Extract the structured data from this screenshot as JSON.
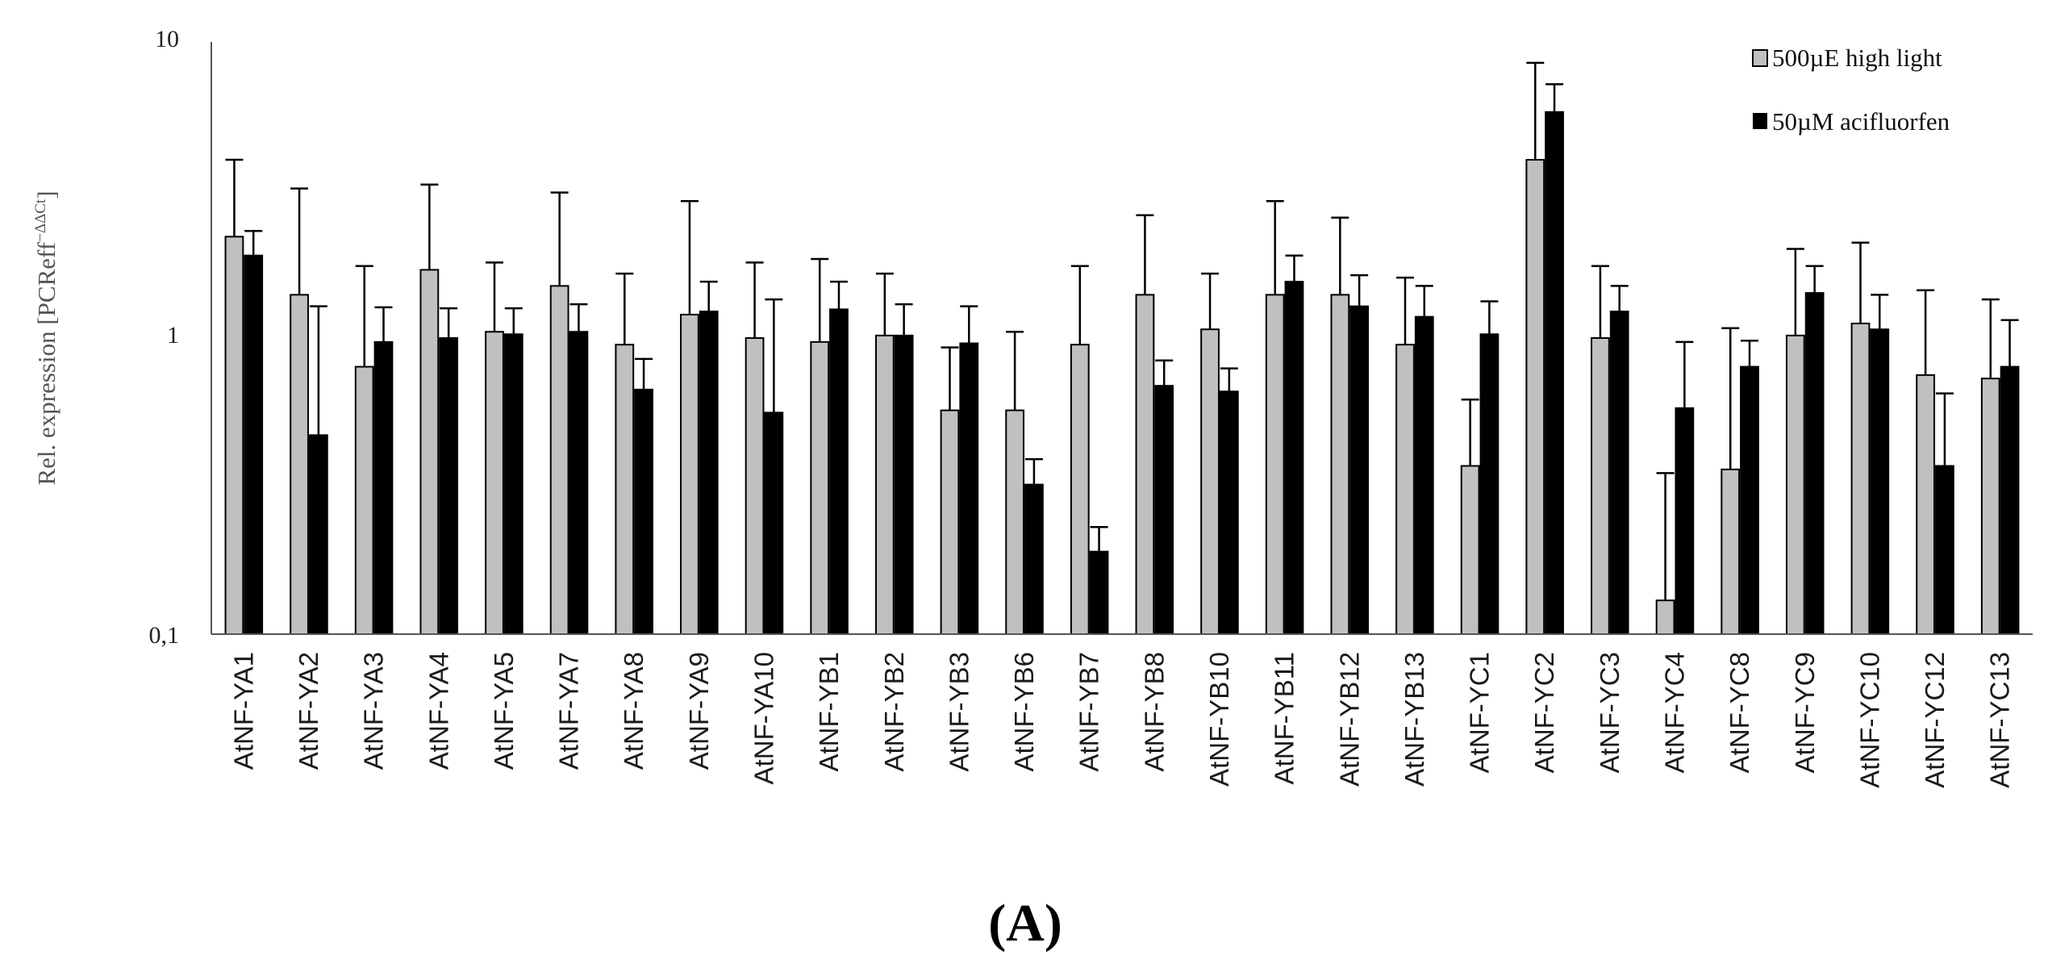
{
  "chart_data": {
    "type": "bar",
    "scale": "log",
    "ylim": [
      0.1,
      10
    ],
    "yticks": [
      "0,1",
      "1",
      "10"
    ],
    "ylabel": "Rel. expression [PCReff",
    "ylabel_sup": "−ΔΔCt",
    "ylabel_close": "]",
    "panel_label": "(A)",
    "legend_position": "top-right",
    "grid": false,
    "categories": [
      "AtNF-YA1",
      "AtNF-YA2",
      "AtNF-YA3",
      "AtNF-YA4",
      "AtNF-YA5",
      "AtNF-YA7",
      "AtNF-YA8",
      "AtNF-YA9",
      "AtNF-YA10",
      "AtNF-YB1",
      "AtNF-YB2",
      "AtNF-YB3",
      "AtNF-YB6",
      "AtNF-YB7",
      "AtNF-YB8",
      "AtNF-YB10",
      "AtNF-YB11",
      "AtNF-YB12",
      "AtNF-YB13",
      "AtNF-YC1",
      "AtNF-YC2",
      "AtNF-YC3",
      "AtNF-YC4",
      "AtNF-YC8",
      "AtNF-YC9",
      "AtNF-YC10",
      "AtNF-YC12",
      "AtNF-YC13"
    ],
    "series": [
      {
        "name": "500µE high light",
        "color": "#c0c0c0",
        "values": [
          2.2,
          1.4,
          0.8,
          1.7,
          1.05,
          1.5,
          0.95,
          1.2,
          1.0,
          0.97,
          1.02,
          0.57,
          0.57,
          0.95,
          1.4,
          1.07,
          1.4,
          1.4,
          0.95,
          0.37,
          4.0,
          1.0,
          0.13,
          0.36,
          1.02,
          1.12,
          0.75,
          0.73
        ],
        "err_upper": [
          4.0,
          3.2,
          1.75,
          3.3,
          1.8,
          3.1,
          1.65,
          2.9,
          1.8,
          1.85,
          1.65,
          0.93,
          1.05,
          1.75,
          2.6,
          1.65,
          2.9,
          2.55,
          1.6,
          0.62,
          8.5,
          1.75,
          0.35,
          1.08,
          2.0,
          2.1,
          1.45,
          1.35
        ]
      },
      {
        "name": "50µM acifluorfen",
        "color": "#000000",
        "values": [
          1.9,
          0.47,
          0.97,
          1.0,
          1.03,
          1.05,
          0.67,
          1.23,
          0.56,
          1.25,
          1.02,
          0.96,
          0.32,
          0.19,
          0.69,
          0.66,
          1.55,
          1.28,
          1.18,
          1.03,
          5.8,
          1.23,
          0.58,
          0.8,
          1.42,
          1.07,
          0.37,
          0.8
        ],
        "err_upper": [
          2.3,
          1.28,
          1.27,
          1.26,
          1.26,
          1.3,
          0.85,
          1.55,
          1.35,
          1.55,
          1.3,
          1.28,
          0.39,
          0.23,
          0.84,
          0.79,
          1.9,
          1.63,
          1.5,
          1.33,
          7.2,
          1.5,
          0.97,
          0.98,
          1.75,
          1.4,
          0.65,
          1.15
        ]
      }
    ]
  }
}
